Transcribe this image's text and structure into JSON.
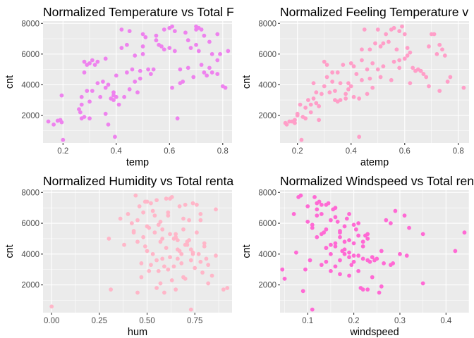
{
  "chart_data": [
    {
      "type": "scatter",
      "title": "Normalized Temperature vs Total F",
      "xlabel": "temp",
      "ylabel": "cnt",
      "xlim": [
        0.125,
        0.835
      ],
      "ylim": [
        200,
        8150
      ],
      "xticks": [
        0.2,
        0.4,
        0.6,
        0.8
      ],
      "xtick_labels": [
        "0.2",
        "0.4",
        "0.6",
        "0.8"
      ],
      "yticks": [
        2000,
        4000,
        6000,
        8000
      ],
      "ytick_labels": [
        "2000",
        "4000",
        "6000",
        "8000"
      ],
      "color": "#ee82ee",
      "x": [
        0.145,
        0.165,
        0.18,
        0.195,
        0.195,
        0.2,
        0.19,
        0.26,
        0.265,
        0.27,
        0.28,
        0.29,
        0.3,
        0.31,
        0.3,
        0.28,
        0.27,
        0.33,
        0.32,
        0.33,
        0.35,
        0.36,
        0.36,
        0.39,
        0.39,
        0.395,
        0.37,
        0.4,
        0.42,
        0.42,
        0.44,
        0.45,
        0.46,
        0.47,
        0.47,
        0.5,
        0.5,
        0.51,
        0.5,
        0.49,
        0.49,
        0.52,
        0.55,
        0.55,
        0.56,
        0.57,
        0.58,
        0.58,
        0.6,
        0.61,
        0.62,
        0.62,
        0.63,
        0.64,
        0.64,
        0.66,
        0.67,
        0.68,
        0.69,
        0.7,
        0.7,
        0.71,
        0.72,
        0.72,
        0.73,
        0.73,
        0.74,
        0.75,
        0.75,
        0.76,
        0.76,
        0.78,
        0.78,
        0.79,
        0.8,
        0.81,
        0.82,
        0.7,
        0.71,
        0.78,
        0.67,
        0.65,
        0.61,
        0.6,
        0.54,
        0.53,
        0.44,
        0.43,
        0.41,
        0.39,
        0.38,
        0.34,
        0.31,
        0.3,
        0.29,
        0.28,
        0.27,
        0.36,
        0.4,
        0.37,
        0.45,
        0.48
      ],
      "y": [
        1600,
        1400,
        1650,
        1550,
        3300,
        400,
        1700,
        2400,
        2200,
        3200,
        5500,
        5300,
        5400,
        5600,
        1800,
        1900,
        2700,
        5500,
        5300,
        4100,
        4200,
        5700,
        3800,
        3500,
        3300,
        600,
        1400,
        4600,
        7600,
        6400,
        6600,
        7500,
        5000,
        5900,
        4200,
        6500,
        6000,
        7100,
        7300,
        4400,
        4900,
        5000,
        6900,
        7200,
        6600,
        6500,
        6300,
        7600,
        7700,
        7800,
        7500,
        6200,
        1800,
        4100,
        5000,
        7400,
        6900,
        6400,
        4500,
        7800,
        6600,
        7700,
        7600,
        5300,
        7200,
        4800,
        4600,
        5100,
        6800,
        6000,
        4800,
        5600,
        4700,
        6000,
        3900,
        3800,
        6200,
        7600,
        6200,
        7300,
        5100,
        4200,
        3800,
        6400,
        5000,
        4700,
        4800,
        3200,
        2700,
        3000,
        3100,
        3200,
        3600,
        2900,
        3600,
        4800,
        1800,
        2100,
        3200,
        4000,
        3700,
        3500
      ]
    },
    {
      "type": "scatter",
      "title": "Normalized Feeling Temperature v",
      "xlabel": "atemp",
      "ylabel": "cnt",
      "xlim": [
        0.135,
        0.84
      ],
      "ylim": [
        200,
        8150
      ],
      "xticks": [
        0.2,
        0.4,
        0.6,
        0.8
      ],
      "xtick_labels": [
        "0.2",
        "0.4",
        "0.6",
        "0.8"
      ],
      "yticks": [
        2000,
        4000,
        6000,
        8000
      ],
      "ytick_labels": [
        "2000",
        "4000",
        "6000",
        "8000"
      ],
      "color": "#ff9ec8",
      "x": [
        0.155,
        0.16,
        0.17,
        0.19,
        0.2,
        0.215,
        0.23,
        0.25,
        0.26,
        0.27,
        0.28,
        0.3,
        0.31,
        0.3,
        0.33,
        0.34,
        0.35,
        0.36,
        0.37,
        0.38,
        0.39,
        0.4,
        0.41,
        0.42,
        0.43,
        0.44,
        0.44,
        0.45,
        0.46,
        0.47,
        0.48,
        0.49,
        0.5,
        0.51,
        0.52,
        0.53,
        0.54,
        0.55,
        0.56,
        0.57,
        0.58,
        0.59,
        0.6,
        0.61,
        0.62,
        0.63,
        0.64,
        0.65,
        0.66,
        0.67,
        0.68,
        0.69,
        0.7,
        0.71,
        0.72,
        0.73,
        0.74,
        0.75,
        0.76,
        0.77,
        0.82,
        0.61,
        0.6,
        0.58,
        0.55,
        0.51,
        0.48,
        0.46,
        0.43,
        0.41,
        0.38,
        0.36,
        0.34,
        0.32,
        0.29,
        0.27,
        0.25,
        0.23,
        0.22,
        0.21,
        0.2,
        0.19,
        0.24,
        0.26,
        0.31,
        0.35,
        0.39,
        0.44,
        0.5,
        0.56,
        0.62,
        0.66,
        0.69,
        0.73,
        0.58,
        0.52,
        0.47,
        0.4,
        0.33,
        0.28,
        0.18
      ],
      "y": [
        1500,
        1400,
        1600,
        1700,
        2000,
        400,
        1800,
        2200,
        3100,
        3500,
        2600,
        5500,
        5300,
        3900,
        4200,
        3000,
        4800,
        4100,
        5300,
        3400,
        4100,
        3900,
        5200,
        4700,
        600,
        5600,
        6300,
        7600,
        5000,
        6300,
        5400,
        6700,
        7600,
        6500,
        6700,
        7300,
        6800,
        7600,
        7700,
        6300,
        7500,
        7800,
        7300,
        6400,
        6100,
        5100,
        4900,
        5000,
        4900,
        4700,
        4500,
        6500,
        7300,
        7300,
        6000,
        6600,
        6300,
        5900,
        4200,
        4500,
        3800,
        5900,
        5700,
        5600,
        4300,
        4500,
        3800,
        3400,
        3100,
        3200,
        3100,
        3000,
        3600,
        3500,
        3400,
        2800,
        2700,
        2500,
        1900,
        2700,
        2100,
        1500,
        3000,
        4100,
        4500,
        2900,
        3700,
        4300,
        5000,
        5500,
        4100,
        4900,
        3900,
        3600,
        5100,
        5200,
        4400,
        5400,
        4800,
        1700,
        1600
      ]
    },
    {
      "type": "scatter",
      "title": "Normalized Humidity vs Total renta",
      "xlabel": "hum",
      "ylabel": "cnt",
      "xlim": [
        -0.045,
        0.945
      ],
      "ylim": [
        200,
        8150
      ],
      "xticks": [
        0,
        0.25,
        0.5,
        0.75
      ],
      "xtick_labels": [
        "0.00",
        "0.25",
        "0.50",
        "0.75"
      ],
      "yticks": [
        2000,
        4000,
        6000,
        8000
      ],
      "ytick_labels": [
        "2000",
        "4000",
        "6000",
        "8000"
      ],
      "color": "#ffb6c8",
      "x": [
        0.0,
        0.3,
        0.31,
        0.36,
        0.38,
        0.42,
        0.43,
        0.44,
        0.45,
        0.46,
        0.47,
        0.48,
        0.49,
        0.5,
        0.5,
        0.51,
        0.52,
        0.53,
        0.54,
        0.55,
        0.56,
        0.57,
        0.58,
        0.59,
        0.6,
        0.61,
        0.62,
        0.63,
        0.64,
        0.65,
        0.66,
        0.67,
        0.68,
        0.69,
        0.7,
        0.71,
        0.72,
        0.73,
        0.74,
        0.75,
        0.76,
        0.77,
        0.78,
        0.79,
        0.8,
        0.81,
        0.82,
        0.84,
        0.86,
        0.9,
        0.92,
        0.45,
        0.47,
        0.49,
        0.52,
        0.55,
        0.57,
        0.6,
        0.62,
        0.64,
        0.66,
        0.68,
        0.7,
        0.72,
        0.74,
        0.76,
        0.78,
        0.8,
        0.55,
        0.58,
        0.61,
        0.63,
        0.65,
        0.67,
        0.69,
        0.71,
        0.73,
        0.53,
        0.56,
        0.59,
        0.48,
        0.51,
        0.43,
        0.4,
        0.45,
        0.5,
        0.54,
        0.58,
        0.62,
        0.66,
        0.7,
        0.74,
        0.78,
        0.82,
        0.86,
        0.57,
        0.61,
        0.65,
        0.69,
        0.73
      ],
      "y": [
        600,
        5000,
        1700,
        6300,
        4600,
        6000,
        5400,
        7800,
        1500,
        7100,
        3400,
        5100,
        7400,
        7400,
        4200,
        2900,
        7300,
        6800,
        6500,
        7500,
        5900,
        4800,
        5000,
        1500,
        7600,
        6700,
        7600,
        7700,
        5000,
        5300,
        4300,
        7100,
        4000,
        6300,
        7200,
        4600,
        6200,
        3600,
        7300,
        3100,
        7200,
        4000,
        6600,
        2800,
        4700,
        3700,
        2100,
        2600,
        6900,
        1700,
        1800,
        4800,
        2500,
        4500,
        3300,
        3600,
        2100,
        4400,
        3800,
        3200,
        3700,
        3400,
        2400,
        4900,
        4000,
        5400,
        6200,
        4500,
        1800,
        3700,
        3000,
        2300,
        1700,
        4200,
        5600,
        4800,
        4300,
        4000,
        2900,
        3200,
        6700,
        5700,
        5500,
        6600,
        6200,
        5800,
        5400,
        5600,
        5300,
        4900,
        4600,
        4100,
        3500,
        3300,
        3900,
        6100,
        6500,
        5100,
        2500,
        400
      ]
    },
    {
      "type": "scatter",
      "title": "Normalized Windspeed vs Total ren",
      "xlabel": "windspeed",
      "ylabel": "cnt",
      "xlim": [
        0.04,
        0.45
      ],
      "ylim": [
        200,
        8150
      ],
      "xticks": [
        0.1,
        0.2,
        0.3,
        0.4
      ],
      "xtick_labels": [
        "0.1",
        "0.2",
        "0.3",
        "0.4"
      ],
      "yticks": [
        2000,
        4000,
        6000,
        8000
      ],
      "ytick_labels": [
        "2000",
        "4000",
        "6000",
        "8000"
      ],
      "color": "#ff69d4",
      "x": [
        0.045,
        0.05,
        0.07,
        0.075,
        0.08,
        0.085,
        0.09,
        0.095,
        0.1,
        0.105,
        0.11,
        0.115,
        0.12,
        0.12,
        0.125,
        0.13,
        0.13,
        0.135,
        0.14,
        0.14,
        0.145,
        0.15,
        0.15,
        0.155,
        0.16,
        0.16,
        0.165,
        0.17,
        0.17,
        0.175,
        0.18,
        0.18,
        0.185,
        0.19,
        0.19,
        0.195,
        0.2,
        0.2,
        0.205,
        0.21,
        0.21,
        0.215,
        0.22,
        0.22,
        0.225,
        0.23,
        0.23,
        0.235,
        0.24,
        0.245,
        0.25,
        0.255,
        0.26,
        0.265,
        0.27,
        0.28,
        0.285,
        0.29,
        0.3,
        0.31,
        0.315,
        0.32,
        0.35,
        0.35,
        0.42,
        0.44,
        0.11,
        0.12,
        0.13,
        0.14,
        0.15,
        0.16,
        0.17,
        0.18,
        0.19,
        0.2,
        0.21,
        0.22,
        0.23,
        0.12,
        0.14,
        0.16,
        0.18,
        0.1,
        0.13,
        0.15,
        0.17,
        0.19,
        0.21,
        0.24,
        0.26,
        0.28,
        0.11,
        0.14,
        0.17,
        0.2,
        0.23,
        0.16,
        0.19,
        0.22
      ],
      "y": [
        3000,
        2400,
        6600,
        4100,
        7700,
        7800,
        1600,
        3000,
        7100,
        3600,
        5900,
        7700,
        7300,
        6500,
        7400,
        7200,
        5300,
        5400,
        5600,
        4400,
        7300,
        6200,
        4000,
        6900,
        7000,
        4500,
        6100,
        5100,
        3600,
        4200,
        4800,
        5800,
        6300,
        6600,
        4100,
        3300,
        3500,
        5900,
        5600,
        5200,
        3900,
        1800,
        1700,
        3700,
        5200,
        3600,
        5300,
        3500,
        2500,
        3600,
        3700,
        1500,
        4200,
        3400,
        6200,
        6000,
        3400,
        6800,
        4000,
        6500,
        3900,
        5700,
        2100,
        5300,
        4200,
        5400,
        400,
        6900,
        6600,
        7200,
        4600,
        6400,
        5500,
        4300,
        3800,
        3900,
        2900,
        4500,
        5000,
        5100,
        3500,
        4700,
        4000,
        6100,
        3300,
        2900,
        5400,
        4900,
        6000,
        3800,
        1900,
        3300,
        5700,
        4400,
        2700,
        4700,
        1700,
        3200,
        2600,
        4800
      ]
    }
  ]
}
